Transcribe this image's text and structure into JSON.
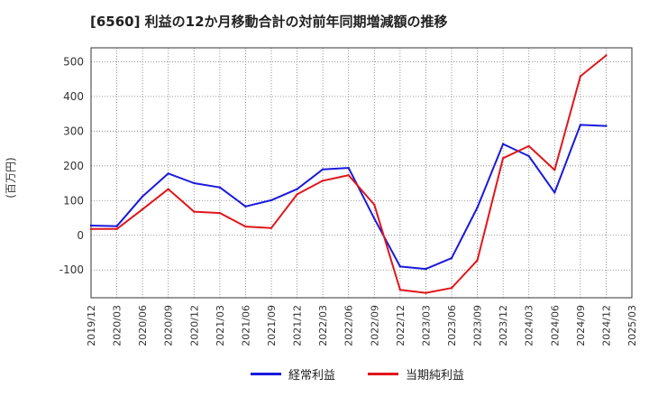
{
  "chart_data": {
    "type": "line",
    "title": "[6560]  利益の12か月移動合計の対前年同期増減額の推移",
    "ylabel": "(百万円)",
    "xlabel": "",
    "ylim": [
      -180,
      540
    ],
    "yticks": [
      -100,
      0,
      100,
      200,
      300,
      400,
      500
    ],
    "grid": true,
    "legend_position": "bottom",
    "categories": [
      "2019/12",
      "2020/03",
      "2020/06",
      "2020/09",
      "2020/12",
      "2021/03",
      "2021/06",
      "2021/09",
      "2021/12",
      "2022/03",
      "2022/06",
      "2022/09",
      "2022/12",
      "2023/03",
      "2023/06",
      "2023/09",
      "2023/12",
      "2024/03",
      "2024/06",
      "2024/09",
      "2024/12",
      "2025/03"
    ],
    "series": [
      {
        "name": "経常利益",
        "color": "#1a1adc",
        "values": [
          28,
          26,
          112,
          178,
          150,
          138,
          83,
          101,
          133,
          190,
          194,
          48,
          -90,
          -97,
          -66,
          80,
          263,
          228,
          123,
          318,
          315,
          null
        ]
      },
      {
        "name": "当期純利益",
        "color": "#e0161b",
        "values": [
          18,
          18,
          75,
          133,
          68,
          64,
          25,
          21,
          118,
          157,
          173,
          88,
          -157,
          -166,
          -152,
          -72,
          222,
          257,
          188,
          458,
          518,
          null
        ]
      }
    ]
  }
}
